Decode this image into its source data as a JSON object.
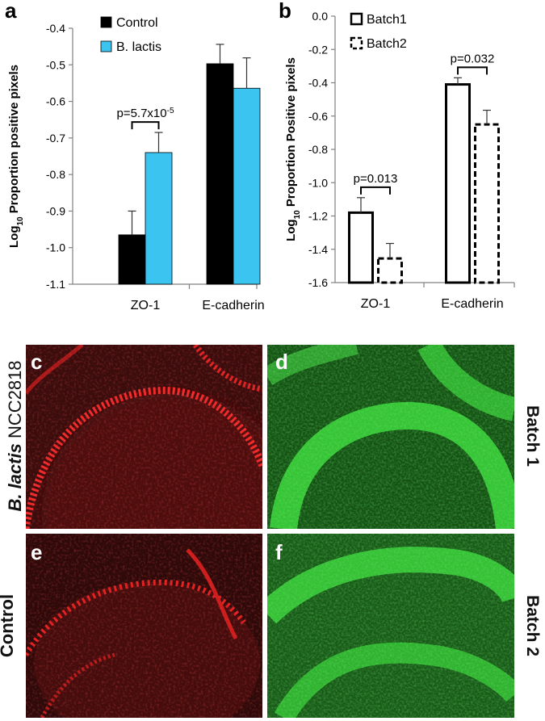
{
  "chart_data": [
    {
      "panel_label": "a",
      "type": "bar",
      "ylabel_main": "Log",
      "ylabel_sub": "10",
      "ylabel_rest": " Proportion positive pixels",
      "ylim": [
        -1.1,
        -0.4
      ],
      "yticks": [
        -1.1,
        -1.0,
        -0.9,
        -0.8,
        -0.7,
        -0.6,
        -0.5,
        -0.4
      ],
      "ytick_labels": [
        "-1.1",
        "-1.0",
        "-0.9",
        "-0.8",
        "-0.7",
        "-0.6",
        "-0.5",
        "-0.4"
      ],
      "categories": [
        "ZO-1",
        "E-cadherin"
      ],
      "series": [
        {
          "name": "Control",
          "color": "#000000",
          "values": [
            -0.965,
            -0.497
          ],
          "errors": [
            0.065,
            0.053
          ]
        },
        {
          "name": "B. lactis",
          "color": "#3cc4f0",
          "values": [
            -0.74,
            -0.564
          ],
          "errors": [
            0.055,
            0.083
          ]
        }
      ],
      "annotations": [
        {
          "text": "p=5.7x10",
          "sup": "-5",
          "category": 0
        }
      ],
      "legend_position": "top-left"
    },
    {
      "panel_label": "b",
      "type": "bar",
      "ylabel_main": "Log",
      "ylabel_sub": "10",
      "ylabel_rest": " Proportion Positive pixels",
      "ylim": [
        -1.6,
        0.0
      ],
      "yticks": [
        -1.6,
        -1.4,
        -1.2,
        -1.0,
        -0.8,
        -0.6,
        -0.4,
        -0.2,
        0.0
      ],
      "ytick_labels": [
        "-1.6",
        "-1.4",
        "-1.2",
        "-1.0",
        "-0.8",
        "-0.6",
        "-0.4",
        "-0.2",
        "0.0"
      ],
      "categories": [
        "ZO-1",
        "E-cadherin"
      ],
      "series": [
        {
          "name": "Batch1",
          "style": "solid",
          "values": [
            -1.18,
            -0.41
          ],
          "errors": [
            0.09,
            0.04
          ]
        },
        {
          "name": "Batch2",
          "style": "dashed",
          "values": [
            -1.455,
            -0.65
          ],
          "errors": [
            0.09,
            0.085
          ]
        }
      ],
      "annotations": [
        {
          "text": "p=0.013",
          "category": 0
        },
        {
          "text": "p=0.032",
          "category": 1
        }
      ],
      "legend_position": "top-left"
    }
  ],
  "micrographs": {
    "c": "c",
    "d": "d",
    "e": "e",
    "f": "f",
    "row1_italic": "B. lactis",
    "row1_strain": " NCC2818",
    "row2_label": "Control",
    "batch1_label": "Batch 1",
    "batch2_label": "Batch 2",
    "red_color": "#d81818",
    "green_color": "#2bbf2b"
  }
}
